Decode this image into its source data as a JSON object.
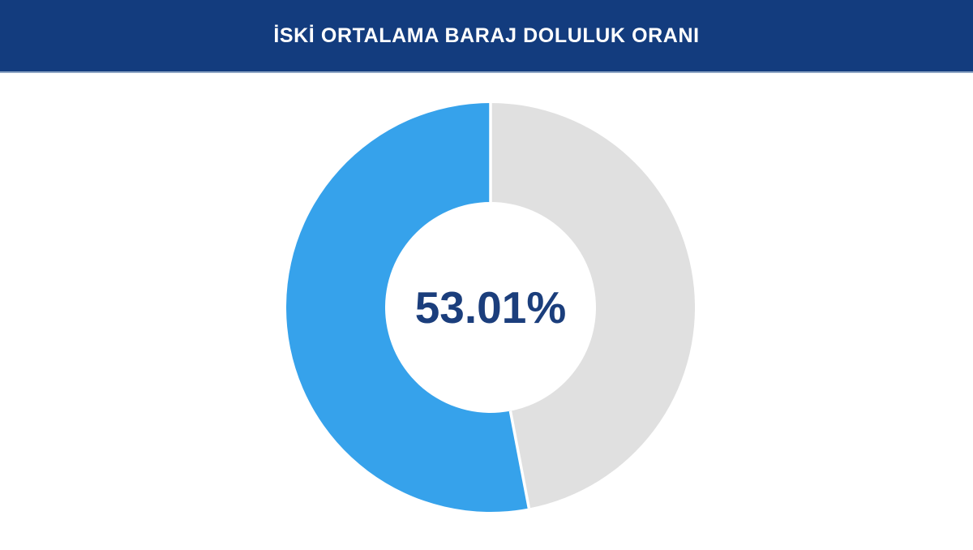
{
  "header": {
    "title": "İSKİ ORTALAMA BARAJ DOLULUK ORANI",
    "bg_color": "#133C7E",
    "text_color": "#FFFFFF",
    "border_bottom_color": "#8DA5C4"
  },
  "chart_data": {
    "type": "pie",
    "subtype": "donut",
    "title": "İSKİ ORTALAMA BARAJ DOLULUK ORANI",
    "center_label": "53.01%",
    "center_label_color": "#1B3E7C",
    "slices": [
      {
        "name": "filled",
        "value": 53.01,
        "color": "#36A2EB"
      },
      {
        "name": "remaining",
        "value": 46.99,
        "color": "#E0E0E0"
      }
    ],
    "start_angle_deg": 0,
    "fill_direction": "counterclockwise-from-top",
    "inner_radius_ratio": 0.516,
    "separator_color": "#FFFFFF",
    "separator_width": 3.5,
    "legend": "none",
    "background": "#FFFFFF"
  }
}
